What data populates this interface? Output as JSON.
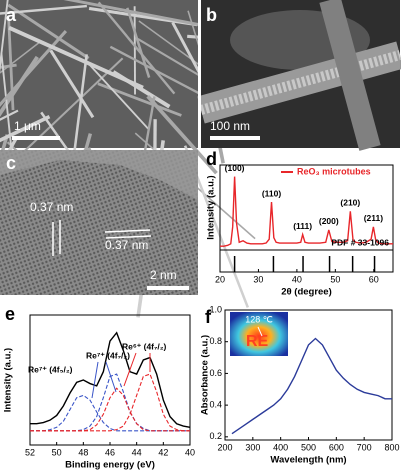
{
  "images": [
    {
      "label": "a",
      "scale_bar": "1 μm"
    },
    {
      "label": "b",
      "scale_bar": "100 nm"
    },
    {
      "label": "c",
      "scale_bar": "2 nm",
      "annotations": [
        "0.37 nm",
        "0.37 nm"
      ]
    }
  ],
  "chart_data": [
    {
      "type": "line",
      "panel_label": "d",
      "x_label": "2θ (degree)",
      "y_label": "Intensity (a.u.)",
      "xlim": [
        20,
        65
      ],
      "xticks": [
        20,
        30,
        40,
        50,
        60
      ],
      "ylim": [
        0,
        110
      ],
      "legend": "upper right",
      "series": [
        {
          "name": "ReO₃ microtubes",
          "color": "#e8262a",
          "x": [
            20,
            21,
            22,
            22.8,
            23.3,
            23.8,
            24.3,
            25,
            26,
            27,
            28,
            29,
            30,
            31,
            32,
            32.8,
            33.4,
            34.0,
            34.6,
            35.5,
            37,
            38.5,
            40,
            41,
            41.5,
            42.1,
            43,
            44.5,
            46,
            47.5,
            48.3,
            49.1,
            50.5,
            52,
            53.2,
            53.9,
            54.6,
            55.3,
            56.5,
            58,
            59.3,
            59.9,
            60.5,
            61.2,
            62.5,
            64,
            65
          ],
          "values": [
            5,
            5,
            6,
            8,
            30,
            95,
            35,
            10,
            12,
            9,
            8,
            8,
            8,
            8,
            9,
            14,
            62,
            16,
            10,
            9,
            9,
            9,
            9,
            10,
            20,
            10,
            9,
            9,
            9,
            10,
            26,
            11,
            10,
            10,
            12,
            50,
            13,
            10,
            9,
            10,
            14,
            30,
            13,
            9,
            8,
            8,
            8
          ]
        }
      ],
      "peak_labels": [
        {
          "text": "(100)",
          "x": 23.8
        },
        {
          "text": "(110)",
          "x": 33.4
        },
        {
          "text": "(111)",
          "x": 41.5
        },
        {
          "text": "(200)",
          "x": 48.3
        },
        {
          "text": "(210)",
          "x": 53.9
        },
        {
          "text": "(211)",
          "x": 59.9
        }
      ],
      "reference": {
        "name": "PDF # 33-1096",
        "x": [
          23.8,
          33.9,
          41.6,
          48.5,
          54.5,
          60.2
        ]
      }
    },
    {
      "type": "line",
      "panel_label": "e",
      "x_label": "Binding energy (eV)",
      "y_label": "Intensity (a.u.)",
      "xlim": [
        52,
        40
      ],
      "xticks": [
        52,
        50,
        48,
        46,
        44,
        42,
        40
      ],
      "ylim": [
        0,
        110
      ],
      "x": [
        52,
        51.5,
        51,
        50.5,
        50,
        49.5,
        49,
        48.5,
        48,
        47.5,
        47,
        46.5,
        46,
        45.5,
        45,
        44.5,
        44,
        43.5,
        43,
        42.5,
        42,
        41.5,
        41,
        40.5,
        40
      ],
      "series": [
        {
          "color": "#000000",
          "values": [
            18,
            18,
            19,
            21,
            25,
            33,
            44,
            53,
            55,
            52,
            50,
            62,
            88,
            95,
            80,
            62,
            60,
            72,
            74,
            60,
            38,
            24,
            18,
            16,
            15
          ]
        },
        {
          "color": "#3a55c8",
          "dash": true,
          "values": [
            12,
            12,
            12,
            13,
            15,
            20,
            30,
            40,
            42,
            38,
            28,
            19,
            14,
            12,
            12,
            12,
            12,
            12,
            12,
            12,
            12,
            12,
            12,
            12,
            12
          ]
        },
        {
          "color": "#3a55c8",
          "dash": true,
          "values": [
            12,
            12,
            12,
            12,
            12,
            12,
            12,
            12,
            13,
            16,
            24,
            40,
            58,
            60,
            45,
            28,
            18,
            14,
            12,
            12,
            12,
            12,
            12,
            12,
            12
          ]
        },
        {
          "color": "#e8262a",
          "dash": true,
          "values": [
            12,
            12,
            12,
            12,
            12,
            12,
            12,
            12,
            12,
            13,
            17,
            26,
            40,
            48,
            42,
            28,
            18,
            13,
            12,
            12,
            12,
            12,
            12,
            12,
            12
          ]
        },
        {
          "color": "#e8262a",
          "dash": true,
          "values": [
            12,
            12,
            12,
            12,
            12,
            12,
            12,
            12,
            12,
            12,
            12,
            12,
            12,
            13,
            16,
            26,
            42,
            58,
            60,
            45,
            26,
            16,
            13,
            12,
            12
          ]
        }
      ],
      "annotations": [
        "Re⁷⁺ (4f₅/₂)",
        "Re⁷⁺ (4f₇/₂)",
        "Re⁶⁺ (4f₇/₂)"
      ]
    },
    {
      "type": "line",
      "panel_label": "f",
      "x_label": "Wavelength (nm)",
      "y_label": "Absorbance (a.u.)",
      "xlim": [
        200,
        800
      ],
      "xticks": [
        200,
        300,
        400,
        500,
        600,
        700,
        800
      ],
      "ylim": [
        0.18,
        1.0
      ],
      "yticks": [
        0.2,
        0.4,
        0.6,
        0.8,
        {
          "value": 1,
          "label": "1.0"
        }
      ],
      "x": [
        225,
        250,
        275,
        300,
        325,
        350,
        375,
        400,
        425,
        450,
        475,
        500,
        525,
        550,
        575,
        600,
        625,
        650,
        675,
        700,
        725,
        750,
        775,
        800
      ],
      "series": [
        {
          "color": "#2b3b9a",
          "values": [
            0.22,
            0.25,
            0.28,
            0.31,
            0.34,
            0.37,
            0.4,
            0.44,
            0.5,
            0.58,
            0.68,
            0.78,
            0.82,
            0.78,
            0.7,
            0.62,
            0.57,
            0.53,
            0.5,
            0.48,
            0.47,
            0.46,
            0.44,
            0.44
          ]
        }
      ],
      "inset_label": "128 ℃"
    }
  ]
}
